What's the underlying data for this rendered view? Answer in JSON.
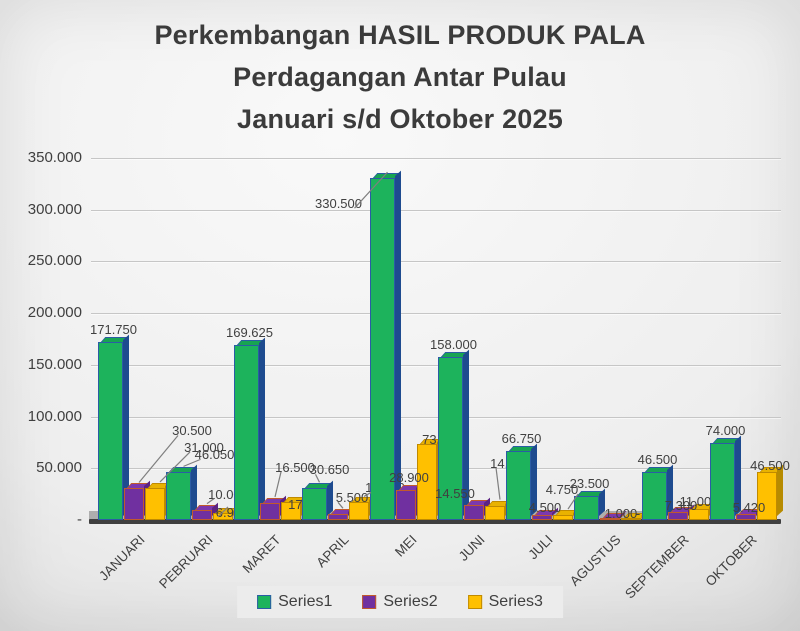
{
  "title_lines": [
    "Perkembangan HASIL PRODUK PALA",
    "Perdagangan Antar Pulau",
    "Januari s/d Oktober 2025"
  ],
  "chart_data": {
    "type": "bar",
    "style": "3d-clustered-column",
    "title": "Perkembangan HASIL PRODUK PALA Perdagangan Antar Pulau Januari s/d Oktober 2025",
    "categories": [
      "JANUARI",
      "PEBRUARI",
      "MARET",
      "APRIL",
      "MEI",
      "JUNI",
      "JULI",
      "AGUSTUS",
      "SEPTEMBER",
      "OKTOBER"
    ],
    "series": [
      {
        "name": "Series1",
        "face": "#1db35c",
        "border": "#2b5ca5",
        "side": "#1e4b8f",
        "top": "#17a452",
        "values": [
          171750,
          46050,
          169625,
          30650,
          330500,
          158000,
          66750,
          23500,
          46500,
          74000
        ]
      },
      {
        "name": "Series2",
        "face": "#7030a0",
        "border": "#c2592b",
        "side": "#5c2384",
        "top": "#7c38ae",
        "values": [
          30500,
          10000,
          16500,
          5500,
          28900,
          14550,
          4500,
          1000,
          7300,
          5420
        ]
      },
      {
        "name": "Series3",
        "face": "#ffc000",
        "border": "#c08a00",
        "side": "#b78b00",
        "top": "#e9b200",
        "values": [
          31000,
          6900,
          17000,
          17000,
          73500,
          14000,
          4750,
          0,
          11000,
          46500
        ]
      }
    ],
    "ylim": [
      0,
      350000
    ],
    "ytick_step": 50000,
    "ytick_labels": [
      "350.000",
      "300.000",
      "250.000",
      "200.000",
      "150.000",
      "100.000",
      "50.000",
      "-"
    ],
    "zero_label": "-",
    "grid": true,
    "legend_position": "bottom",
    "colors": {
      "axis": "#3f3f3f",
      "gridline": "#c6c6c6",
      "floor": "#aeaeae",
      "data_label": "#404040",
      "title": "#3b3b3b",
      "leader_line": "#7f7f7f"
    }
  }
}
